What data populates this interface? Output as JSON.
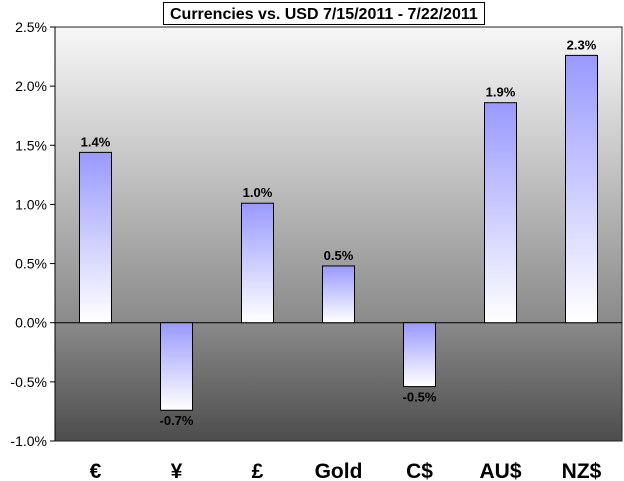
{
  "chart_data": {
    "type": "bar",
    "title": "Currencies vs. USD 7/15/2011 - 7/22/2011",
    "xlabel": "",
    "ylabel": "",
    "ylim": [
      -1.0,
      2.5
    ],
    "ytick_values": [
      -1.0,
      -0.5,
      0.0,
      0.5,
      1.0,
      1.5,
      2.0,
      2.5
    ],
    "ytick_labels": [
      "-1.0%",
      "-0.5%",
      "0.0%",
      "0.5%",
      "1.0%",
      "1.5%",
      "2.0%",
      "2.5%"
    ],
    "categories": [
      "€",
      "¥",
      "£",
      "Gold",
      "C$",
      "AU$",
      "NZ$"
    ],
    "values": [
      1.44,
      -0.74,
      1.01,
      0.48,
      -0.54,
      1.86,
      2.26
    ],
    "data_labels": [
      "1.4%",
      "-0.7%",
      "1.0%",
      "0.5%",
      "-0.5%",
      "1.9%",
      "2.3%"
    ],
    "grid": false,
    "legend": "none",
    "colors": {
      "bar_top": "#9999ff",
      "bar_bottom": "#ffffff",
      "bg_top": "#f7f7f7",
      "bg_zero": "#8a8a8a",
      "bg_bottom": "#4d4d4d"
    }
  }
}
